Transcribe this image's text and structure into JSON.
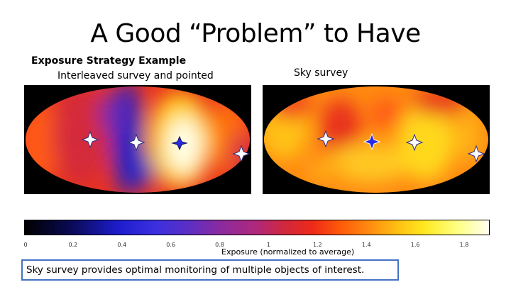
{
  "slide": {
    "title": "A Good “Problem” to Have",
    "subtitle_bold": "Exposure Strategy Example",
    "left_panel_label": "Interleaved survey and pointed",
    "right_panel_label": "Sky survey"
  },
  "colorbar": {
    "ticks": [
      "0",
      "0.2",
      "0.4",
      "0.6",
      "0.8",
      "1",
      "1.2",
      "1.4",
      "1.6",
      "1.8"
    ],
    "label": "Exposure (normalized to average)"
  },
  "callout": {
    "text": "Sky survey provides optimal monitoring of multiple objects of interest."
  },
  "icons": {
    "marker": "four-point-star-icon"
  }
}
